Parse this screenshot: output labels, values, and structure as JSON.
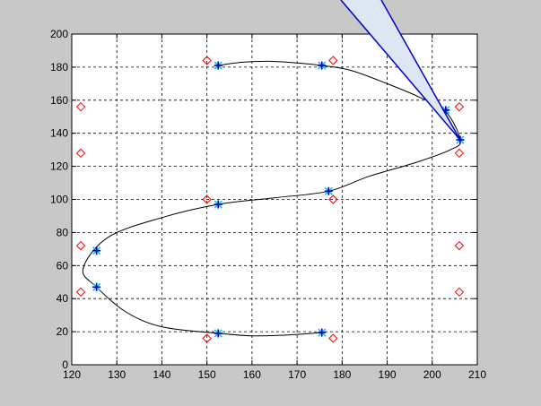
{
  "colors": {
    "figure_bg": "#c8c8c8",
    "axes_bg": "#ffffff",
    "curve": "#000000",
    "control_point": "#ff0000",
    "knot_marker": "#00c0ff",
    "knot_plus": "#0000aa",
    "pointer_fill": "#dde6f2",
    "pointer_stroke": "#0000cc"
  },
  "chart_data": {
    "type": "line",
    "title": "",
    "xlabel": "",
    "ylabel": "",
    "xlim": [
      120,
      210
    ],
    "ylim": [
      0,
      200
    ],
    "grid": true,
    "x_ticks": [
      120,
      130,
      140,
      150,
      160,
      170,
      180,
      190,
      200,
      210
    ],
    "y_ticks": [
      0,
      20,
      40,
      60,
      80,
      100,
      120,
      140,
      160,
      180,
      200
    ],
    "x_tick_labels": [
      "120",
      "130",
      "140",
      "150",
      "160",
      "170",
      "180",
      "190",
      "200",
      "210"
    ],
    "y_tick_labels": [
      "0",
      "20",
      "40",
      "60",
      "80",
      "100",
      "120",
      "140",
      "160",
      "180",
      "200"
    ],
    "series": [
      {
        "kind": "curve",
        "x": [
          152.5,
          158,
          164,
          170,
          175.5,
          182,
          190,
          197,
          203,
          206.2,
          204,
          196,
          186,
          177,
          165,
          152.5,
          140,
          128,
          122.5,
          125.5,
          132,
          140,
          152.5,
          160,
          168,
          175.5
        ],
        "y": [
          181,
          183,
          183.5,
          182.5,
          181,
          178,
          170,
          162,
          153,
          136,
          130,
          122,
          114,
          105,
          101,
          97,
          89,
          77,
          58,
          47,
          32,
          23,
          19,
          17.5,
          18,
          19.5
        ]
      },
      {
        "kind": "control_points",
        "x": [
          150,
          178,
          122,
          122,
          206,
          206,
          150,
          178,
          122,
          122,
          206,
          206,
          150,
          178
        ],
        "y": [
          184,
          184,
          156,
          128,
          156,
          128,
          100,
          100,
          72,
          44,
          72,
          44,
          16,
          16
        ]
      },
      {
        "kind": "knots",
        "x": [
          152.5,
          175.5,
          203,
          206.2,
          177,
          152.5,
          125.5,
          125.5,
          152.5,
          175.5
        ],
        "y": [
          181,
          181,
          154,
          136,
          105,
          97,
          69,
          47,
          19,
          19.5
        ]
      }
    ],
    "annotation": {
      "kind": "pointer",
      "tip": [
        206.2,
        136
      ]
    }
  }
}
